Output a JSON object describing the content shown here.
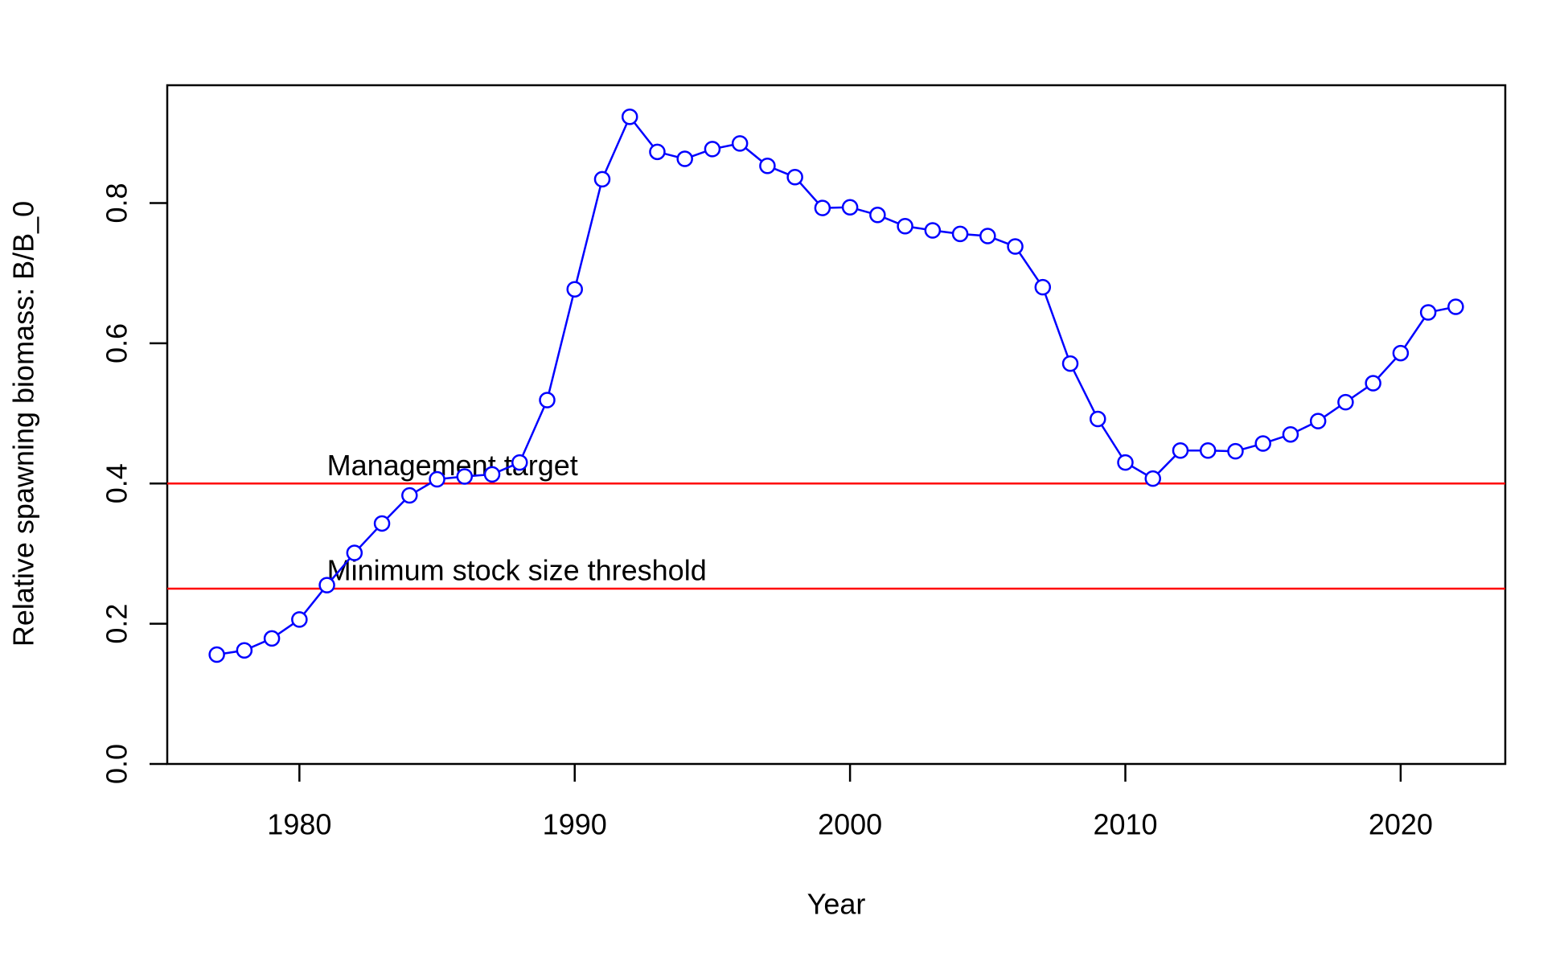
{
  "chart_data": {
    "type": "line",
    "xlabel": "Year",
    "ylabel": "Relative spawning biomass: B/B_0",
    "x": [
      1977,
      1978,
      1979,
      1980,
      1981,
      1982,
      1983,
      1984,
      1985,
      1986,
      1987,
      1988,
      1989,
      1990,
      1991,
      1992,
      1993,
      1994,
      1995,
      1996,
      1997,
      1998,
      1999,
      2000,
      2001,
      2002,
      2003,
      2004,
      2005,
      2006,
      2007,
      2008,
      2009,
      2010,
      2011,
      2012,
      2013,
      2014,
      2015,
      2016,
      2017,
      2018,
      2019,
      2020,
      2021,
      2022
    ],
    "series": [
      {
        "color": "#0000ff",
        "values": [
          0.156,
          0.162,
          0.179,
          0.206,
          0.255,
          0.301,
          0.343,
          0.383,
          0.406,
          0.41,
          0.413,
          0.43,
          0.519,
          0.677,
          0.834,
          0.923,
          0.873,
          0.863,
          0.877,
          0.885,
          0.853,
          0.837,
          0.793,
          0.794,
          0.783,
          0.767,
          0.761,
          0.756,
          0.753,
          0.738,
          0.68,
          0.571,
          0.492,
          0.43,
          0.407,
          0.447,
          0.447,
          0.446,
          0.457,
          0.47,
          0.489,
          0.516,
          0.543,
          0.586,
          0.644,
          0.652
        ]
      }
    ],
    "hlines": [
      {
        "value": 0.4,
        "label": "Management target",
        "color": "#ff0000"
      },
      {
        "value": 0.25,
        "label": "Minimum stock size threshold",
        "color": "#ff0000"
      }
    ],
    "annotation_x": 1981,
    "xlim": [
      1975.2,
      2023.8
    ],
    "ylim": [
      0,
      0.968
    ],
    "xticks": [
      1980,
      1990,
      2000,
      2010,
      2020
    ],
    "yticks": [
      {
        "value": 0,
        "label": "0.0"
      },
      0.2,
      0.4,
      0.6,
      0.8
    ]
  }
}
